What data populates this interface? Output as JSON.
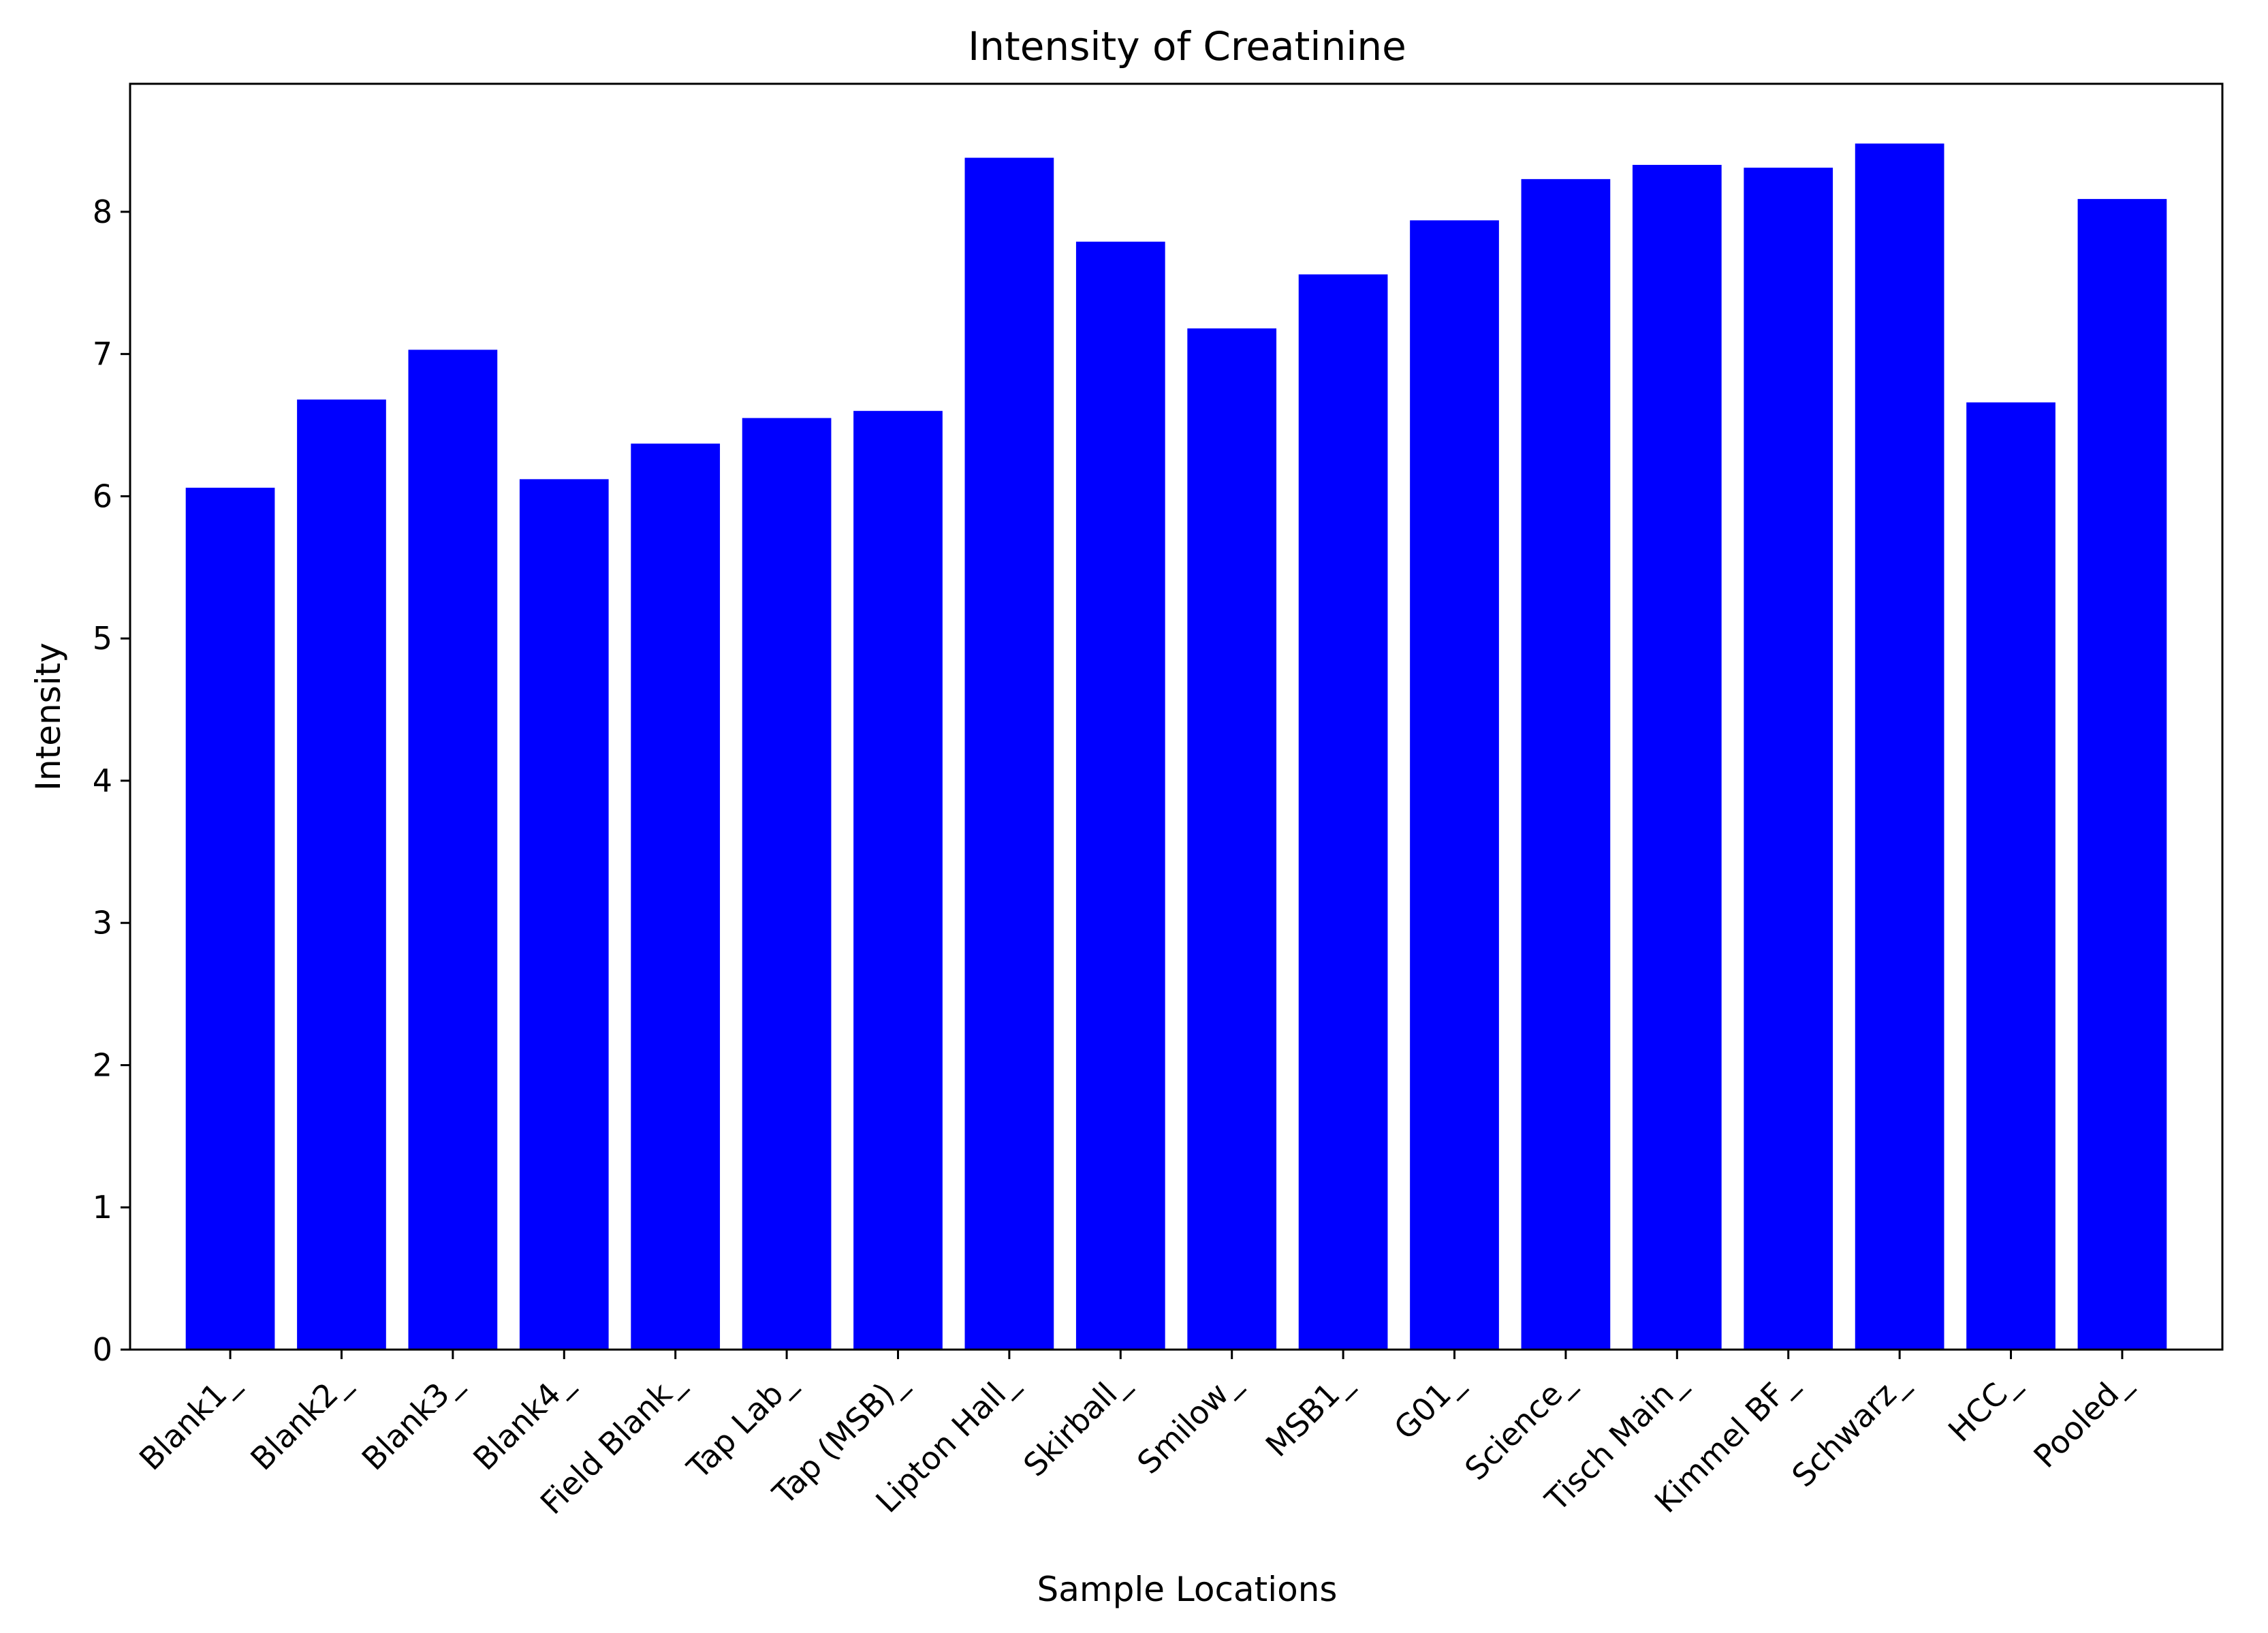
{
  "chart_data": {
    "type": "bar",
    "title": "Intensity of Creatinine",
    "xlabel": "Sample Locations",
    "ylabel": "Intensity",
    "ylim": [
      0,
      8.9
    ],
    "yticks": [
      0,
      1,
      2,
      3,
      4,
      5,
      6,
      7,
      8
    ],
    "grid": false,
    "bar_color": "#0000ff",
    "categories": [
      "Blank1_",
      "Blank2_",
      "Blank3_",
      "Blank4_",
      "Field Blank_",
      "Tap Lab_",
      "Tap (MSB)_",
      "Lipton Hall_",
      "Skirball_",
      "Smilow_",
      "MSB1_",
      "G01_",
      "Science_",
      "Tisch Main_",
      "Kimmel BF_",
      "Schwarz_",
      "HCC_",
      "Pooled_"
    ],
    "values": [
      6.06,
      6.68,
      7.03,
      6.12,
      6.37,
      6.55,
      6.6,
      8.38,
      7.79,
      7.18,
      7.56,
      7.94,
      8.23,
      8.33,
      8.31,
      8.48,
      6.66,
      8.09
    ]
  }
}
